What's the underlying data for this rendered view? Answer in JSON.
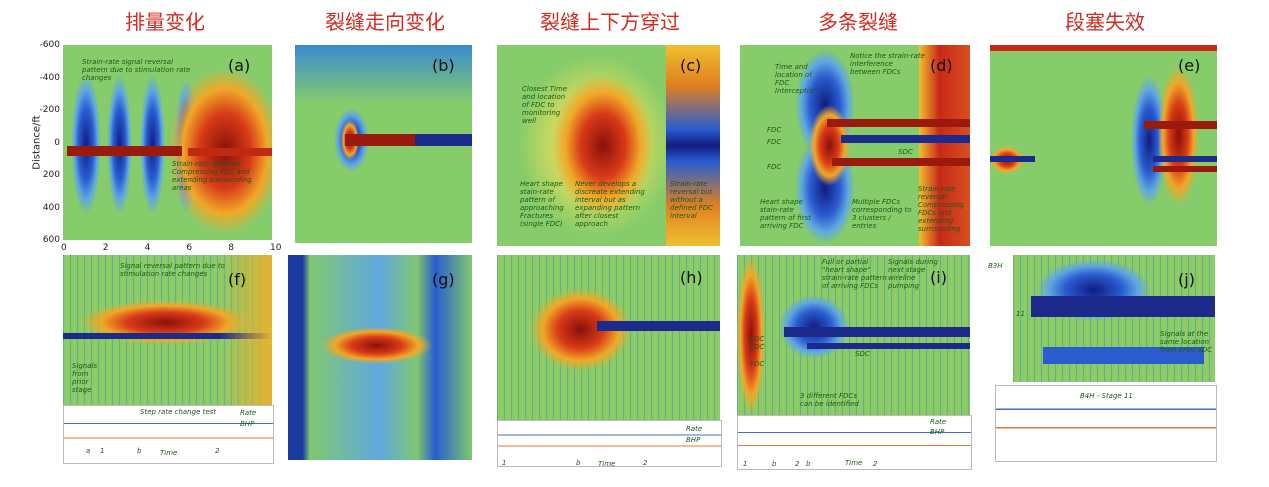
{
  "titles": [
    "排量变化",
    "裂缝走向变化",
    "裂缝上下方穿过",
    "多条裂缝",
    "段塞失效"
  ],
  "axis": {
    "y_label": "Distance/ft",
    "y_ticks": [
      -600,
      -400,
      -200,
      0,
      200,
      400,
      600
    ],
    "x_ticks": [
      0,
      2,
      4,
      6,
      8,
      10
    ]
  },
  "panels": [
    {
      "label": "(a)",
      "notes": [
        "Strain-rate signal reversal pattern due to stimulation rate changes",
        "Strain-rate reversal: Compressing FDC and extending surrounding areas"
      ]
    },
    {
      "label": "(b)",
      "notes": []
    },
    {
      "label": "(c)",
      "notes": [
        "Closest Time and location of FDC to monitoring well",
        "Heart shape stain-rate pattern of approaching Fractures (single FDC)",
        "Never develops a discreate extending interval but as expanding pattern after closest approach",
        "Strain-rate reversal but without a defined FDC interval"
      ]
    },
    {
      "label": "(d)",
      "notes": [
        "Time and location of FDC Interception",
        "Notice the strain-rate interference between FDCs",
        "FDC",
        "FDC",
        "FDC",
        "SDC",
        "Heart shape stain-rate pattern of first arriving FDC",
        "Multiple FDCs corresponding to 3 clusters / entries",
        "Strain-rate reversal: Compressing FDCs and extending surrounding"
      ]
    },
    {
      "label": "(e)",
      "notes": []
    },
    {
      "label": "(f)",
      "notes": [
        "Signal reversal pattern due to stimulation rate changes",
        "Signals from prior stage",
        "Step rate change test",
        "Rate",
        "BHP",
        "Time",
        "a",
        "1",
        "b",
        "2"
      ]
    },
    {
      "label": "(g)",
      "notes": []
    },
    {
      "label": "(h)",
      "notes": [
        "Rate",
        "BHP",
        "Time",
        "1",
        "b",
        "2"
      ]
    },
    {
      "label": "(i)",
      "notes": [
        "Full or partial \"heart shape\" strain-rate pattern of arriving FDCs",
        "Signals during next stage wireline pumping",
        "FDC",
        "FDC",
        "FDC",
        "SDC",
        "3 different FDCs can be identified",
        "Rate",
        "BHP",
        "Time",
        "1",
        "b",
        "2",
        "b",
        "2"
      ]
    },
    {
      "label": "(j)",
      "notes": [
        "B3H",
        "11",
        "Signals at the same location from prior SDC",
        "B4H - Stage 11"
      ]
    }
  ]
}
